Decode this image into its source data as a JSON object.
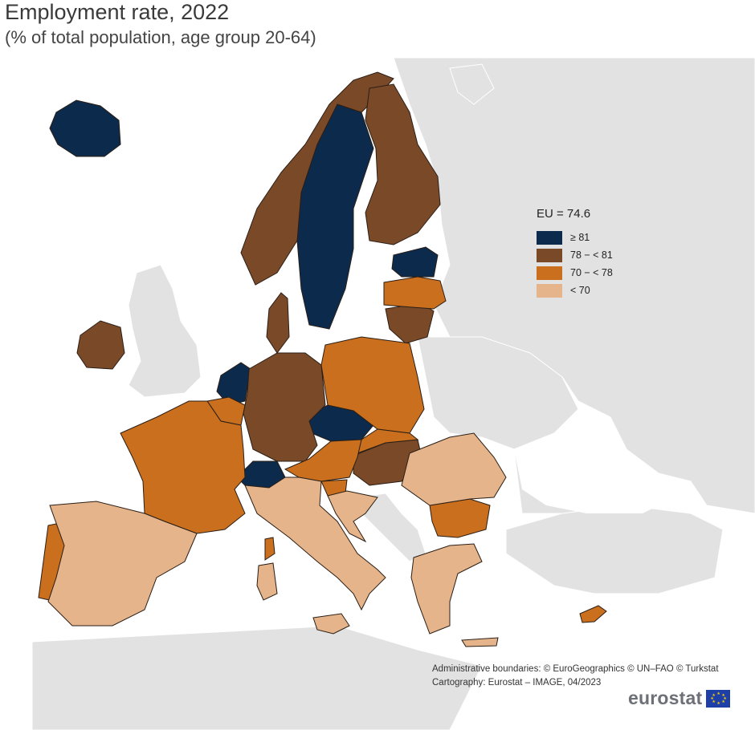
{
  "title": "Employment rate, 2022",
  "subtitle": "(% of total population, age group 20-64)",
  "legend": {
    "title": "EU = 74.6",
    "items": [
      {
        "label": "≥ 81",
        "color": "#0c2a4c"
      },
      {
        "label": "78 − < 81",
        "color": "#7a4a28"
      },
      {
        "label": "70 − < 78",
        "color": "#c96f1d"
      },
      {
        "label": "< 70",
        "color": "#e5b48a"
      }
    ]
  },
  "colors": {
    "no_data": "#e2e2e2",
    "sea": "#ffffff",
    "border": "#3a2a20"
  },
  "credits": {
    "line1": "Administrative boundaries: © EuroGeographics © UN–FAO © Turkstat",
    "line2": "Cartography: Eurostat – IMAGE, 04/2023"
  },
  "logo": {
    "text": "eurostat",
    "icon": "eu-flag-icon"
  }
}
